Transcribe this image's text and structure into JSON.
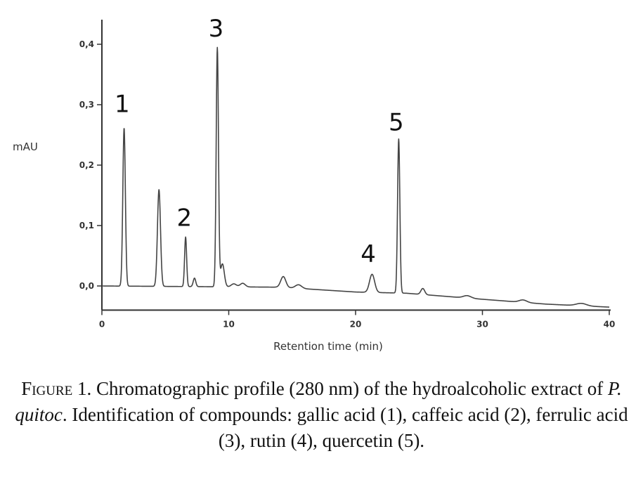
{
  "chart_data": {
    "type": "line",
    "ylabel": "mAU",
    "xlabel": "Retention time (min)",
    "xlim": [
      0,
      40
    ],
    "ylim": [
      -0.04,
      0.44
    ],
    "x_ticks": [
      0,
      10,
      20,
      30,
      40
    ],
    "x_tick_labels": [
      "0",
      "10",
      "20",
      "30",
      "40"
    ],
    "y_ticks": [
      0.0,
      0.1,
      0.2,
      0.3,
      0.4
    ],
    "y_tick_labels": [
      "0,0",
      "0,1",
      "0,2",
      "0,3",
      "0,4"
    ],
    "grid": false,
    "series": [
      {
        "line_color": "#444444",
        "baseline": [
          [
            0,
            0.0
          ],
          [
            14,
            -0.002
          ],
          [
            20,
            -0.01
          ],
          [
            24,
            -0.012
          ],
          [
            30,
            -0.022
          ],
          [
            35,
            -0.03
          ],
          [
            40,
            -0.035
          ]
        ],
        "peaks": [
          {
            "rt": 1.75,
            "height": 0.262,
            "width": 0.1
          },
          {
            "rt": 4.5,
            "height": 0.16,
            "width": 0.12
          },
          {
            "rt": 6.6,
            "height": 0.082,
            "width": 0.08
          },
          {
            "rt": 7.3,
            "height": 0.014,
            "width": 0.1
          },
          {
            "rt": 9.1,
            "height": 0.395,
            "width": 0.09
          },
          {
            "rt": 9.5,
            "height": 0.038,
            "width": 0.15
          },
          {
            "rt": 10.4,
            "height": 0.005,
            "width": 0.2
          },
          {
            "rt": 11.1,
            "height": 0.006,
            "width": 0.2
          },
          {
            "rt": 14.3,
            "height": 0.018,
            "width": 0.2
          },
          {
            "rt": 15.5,
            "height": 0.006,
            "width": 0.25
          },
          {
            "rt": 21.3,
            "height": 0.03,
            "width": 0.2
          },
          {
            "rt": 23.4,
            "height": 0.255,
            "width": 0.09
          },
          {
            "rt": 25.3,
            "height": 0.01,
            "width": 0.15
          },
          {
            "rt": 28.8,
            "height": 0.004,
            "width": 0.3
          },
          {
            "rt": 33.2,
            "height": 0.004,
            "width": 0.3
          },
          {
            "rt": 37.8,
            "height": 0.004,
            "width": 0.4
          }
        ]
      }
    ],
    "annotations": [
      {
        "text": "1",
        "x": 1.6,
        "y": 0.283
      },
      {
        "text": "2",
        "x": 6.5,
        "y": 0.095
      },
      {
        "text": "3",
        "x": 9.0,
        "y": 0.408
      },
      {
        "text": "4",
        "x": 21.0,
        "y": 0.035
      },
      {
        "text": "5",
        "x": 23.2,
        "y": 0.253
      }
    ]
  },
  "caption": {
    "label": "Figure 1.",
    "text_a": " Chromatographic profile (280 nm) of the hydroalcoholic extract of ",
    "species": "P. quitoc",
    "text_b": ". Identification of compounds: gallic acid (1), caffeic acid (2), ferrulic acid (3), rutin (4), quercetin (5)."
  }
}
